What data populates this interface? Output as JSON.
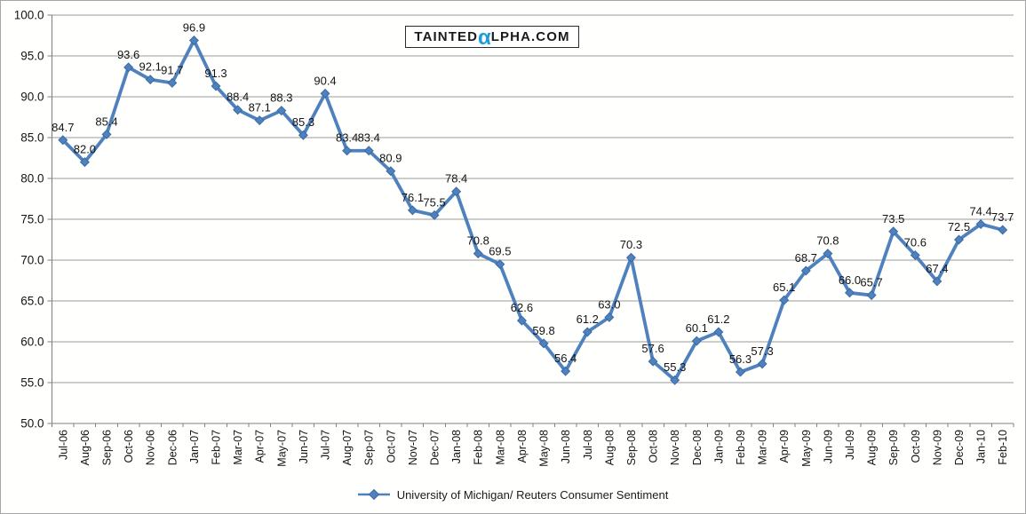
{
  "logo": {
    "prefix": "TAINTED",
    "alpha": "α",
    "suffix": "LPHA.COM"
  },
  "legend": {
    "series_label": "University of Michigan/ Reuters Consumer Sentiment"
  },
  "chart_data": {
    "type": "line",
    "title": "",
    "xlabel": "",
    "ylabel": "",
    "categories": [
      "Jul-06",
      "Aug-06",
      "Sep-06",
      "Oct-06",
      "Nov-06",
      "Dec-06",
      "Jan-07",
      "Feb-07",
      "Mar-07",
      "Apr-07",
      "May-07",
      "Jun-07",
      "Jul-07",
      "Aug-07",
      "Sep-07",
      "Oct-07",
      "Nov-07",
      "Dec-07",
      "Jan-08",
      "Feb-08",
      "Mar-08",
      "Apr-08",
      "May-08",
      "Jun-08",
      "Jul-08",
      "Aug-08",
      "Sep-08",
      "Oct-08",
      "Nov-08",
      "Dec-08",
      "Jan-09",
      "Feb-09",
      "Mar-09",
      "Apr-09",
      "May-09",
      "Jun-09",
      "Jul-09",
      "Aug-09",
      "Sep-09",
      "Oct-09",
      "Nov-09",
      "Dec-09",
      "Jan-10",
      "Feb-10"
    ],
    "series": [
      {
        "name": "University of Michigan/ Reuters Consumer Sentiment",
        "values": [
          84.7,
          82.0,
          85.4,
          93.6,
          92.1,
          91.7,
          96.9,
          91.3,
          88.4,
          87.1,
          88.3,
          85.3,
          90.4,
          83.4,
          83.4,
          80.9,
          76.1,
          75.5,
          78.4,
          70.8,
          69.5,
          62.6,
          59.8,
          56.4,
          61.2,
          63.0,
          70.3,
          57.6,
          55.3,
          60.1,
          61.2,
          56.3,
          57.3,
          65.1,
          68.7,
          70.8,
          66.0,
          65.7,
          73.5,
          70.6,
          67.4,
          72.5,
          74.4,
          73.7
        ]
      }
    ],
    "ylim": [
      50.0,
      100.0
    ],
    "ytick_step": 5,
    "ytick_labels": [
      "50.0",
      "55.0",
      "60.0",
      "65.0",
      "70.0",
      "75.0",
      "80.0",
      "85.0",
      "90.0",
      "95.0",
      "100.0"
    ],
    "grid": "horizontal",
    "legend_position": "bottom-center",
    "marker": "diamond",
    "data_labels": "above-point-one-decimal",
    "x_labels_rotation": "vertical-bottom-to-top"
  },
  "colors": {
    "series_line": "#4F81BD",
    "marker_fill": "#4F81BD",
    "marker_edge": "#3A6BA5",
    "gridline": "#9b9b9b",
    "axis": "#7f7f7f",
    "logo_alpha_blue": "#1E9CD9",
    "chart_border": "#a6a6a6",
    "background": "#ffffff"
  }
}
